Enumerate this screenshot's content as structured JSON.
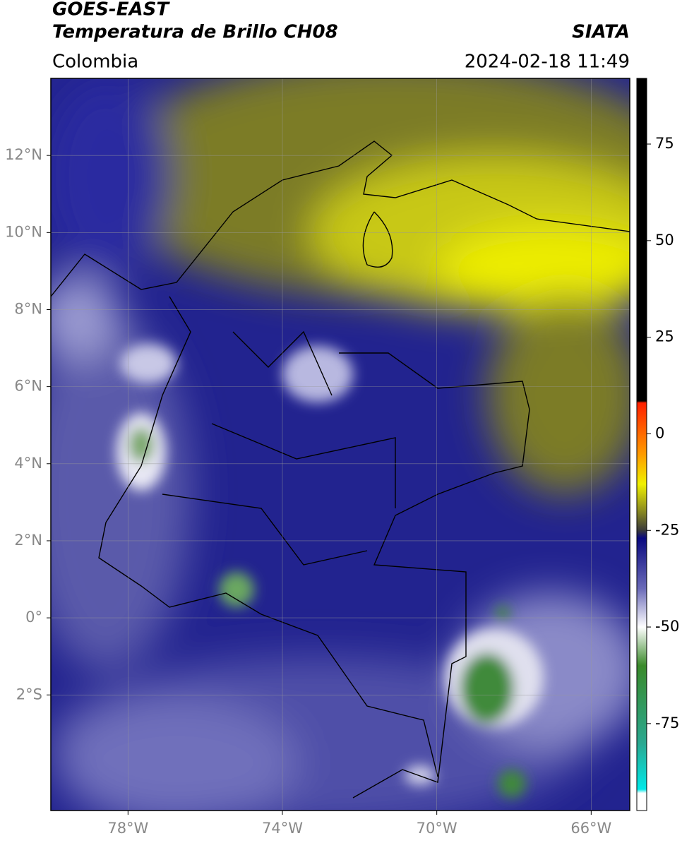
{
  "header": {
    "title": "GOES-EAST",
    "subtitle": "Temperatura de Brillo CH08",
    "source": "SIATA",
    "region": "Colombia",
    "datetime": "2024-02-18 11:49"
  },
  "map": {
    "xlim": [
      -80,
      -65
    ],
    "ylim": [
      -5,
      14
    ],
    "xticks": [
      {
        "value": -78,
        "label": "78°W"
      },
      {
        "value": -74,
        "label": "74°W"
      },
      {
        "value": -70,
        "label": "70°W"
      },
      {
        "value": -66,
        "label": "66°W"
      }
    ],
    "yticks": [
      {
        "value": 12,
        "label": "12°N"
      },
      {
        "value": 10,
        "label": "10°N"
      },
      {
        "value": 8,
        "label": "8°N"
      },
      {
        "value": 6,
        "label": "6°N"
      },
      {
        "value": 4,
        "label": "4°N"
      },
      {
        "value": 2,
        "label": "2°N"
      },
      {
        "value": 0,
        "label": "0°"
      },
      {
        "value": -2,
        "label": "2°S"
      }
    ],
    "grid": true
  },
  "colorbar": {
    "lim": [
      -97.5,
      92
    ],
    "ticks": [
      75,
      50,
      25,
      0,
      -25,
      -50,
      -75
    ],
    "stops": [
      {
        "value": 92,
        "color": "#000000"
      },
      {
        "value": 8.5,
        "color": "#000000"
      },
      {
        "value": 8,
        "color": "#ff2000"
      },
      {
        "value": -5,
        "color": "#ff9900"
      },
      {
        "value": -13,
        "color": "#f0f000"
      },
      {
        "value": -20,
        "color": "#8a8a20"
      },
      {
        "value": -25,
        "color": "#3a3a3a"
      },
      {
        "value": -27,
        "color": "#0a0a80"
      },
      {
        "value": -40,
        "color": "#6a6ab8"
      },
      {
        "value": -50,
        "color": "#ffffff"
      },
      {
        "value": -60,
        "color": "#3a8a2a"
      },
      {
        "value": -80,
        "color": "#2aa890"
      },
      {
        "value": -92,
        "color": "#00e8e8"
      },
      {
        "value": -93,
        "color": "#ffffff"
      },
      {
        "value": -97.5,
        "color": "#ffffff"
      }
    ]
  }
}
